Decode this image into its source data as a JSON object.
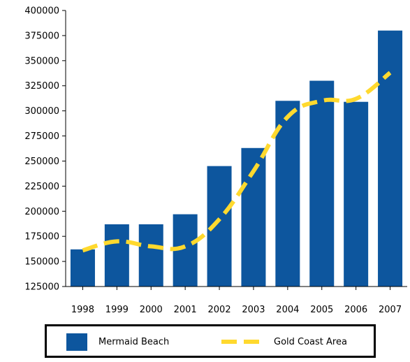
{
  "chart_data": {
    "type": "bar",
    "title": "",
    "xlabel": "",
    "ylabel": "",
    "categories": [
      "1998",
      "1999",
      "2000",
      "2001",
      "2002",
      "2003",
      "2004",
      "2005",
      "2006",
      "2007"
    ],
    "ylim": [
      125000,
      400000
    ],
    "yticks": [
      125000,
      150000,
      175000,
      200000,
      225000,
      250000,
      275000,
      300000,
      325000,
      350000,
      375000,
      400000
    ],
    "grid": false,
    "legend_position": "bottom",
    "series": [
      {
        "name": "Mermaid Beach",
        "type": "bar",
        "color": "#0d569e",
        "values": [
          162000,
          187000,
          187000,
          197000,
          245000,
          263000,
          310000,
          330000,
          309000,
          380000
        ]
      },
      {
        "name": "Gold Coast Area",
        "type": "line",
        "style": "dashed",
        "color": "#ffd92e",
        "values": [
          161000,
          170000,
          165000,
          165000,
          192000,
          240000,
          294000,
          310000,
          312000,
          338000
        ]
      }
    ]
  }
}
